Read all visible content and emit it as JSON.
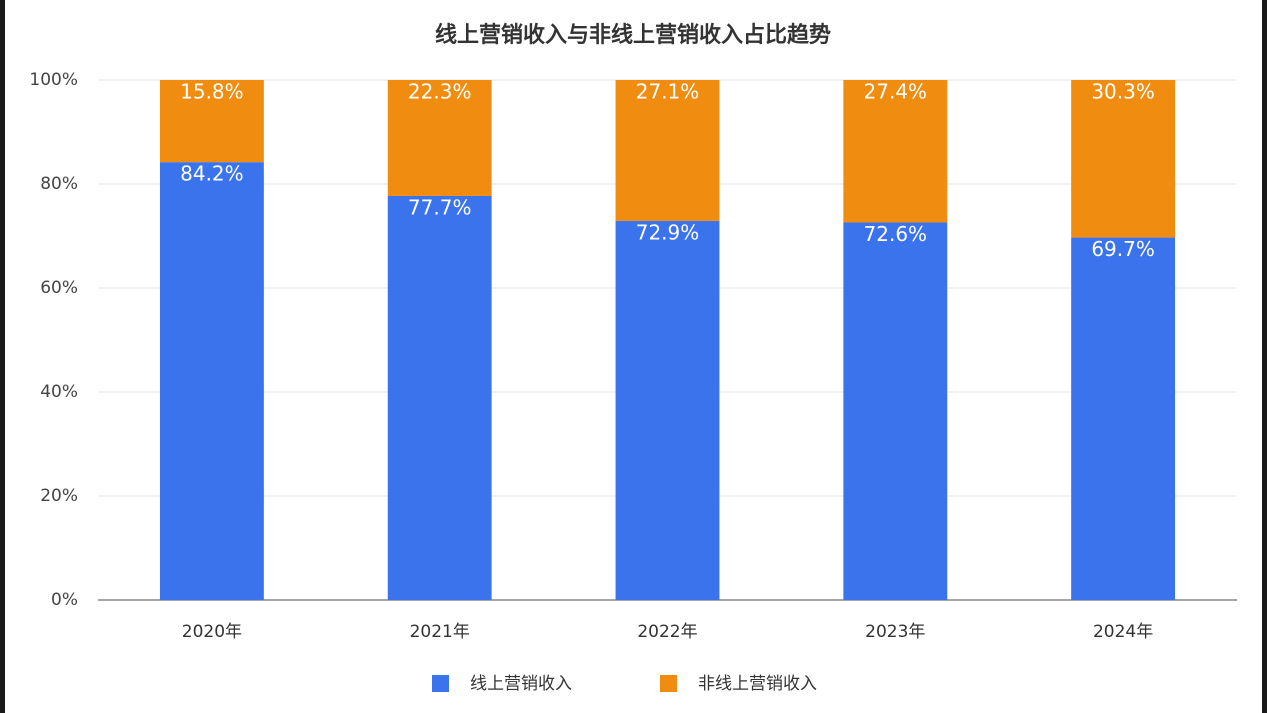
{
  "chart_data": {
    "type": "stacked_bar",
    "title": "线上营销收入与非线上营销收入占比趋势",
    "categories": [
      "2020年",
      "2021年",
      "2022年",
      "2023年",
      "2024年"
    ],
    "series": [
      {
        "name": "线上营销收入",
        "color": "#3b73ec",
        "values": [
          84.2,
          77.7,
          72.9,
          72.6,
          69.7
        ],
        "value_labels": [
          "84.2%",
          "77.7%",
          "72.9%",
          "72.6%",
          "69.7%"
        ]
      },
      {
        "name": "非线上营销收入",
        "color": "#f08c10",
        "values": [
          15.8,
          22.3,
          27.1,
          27.4,
          30.3
        ],
        "value_labels": [
          "15.8%",
          "22.3%",
          "27.1%",
          "27.4%",
          "30.3%"
        ]
      }
    ],
    "ylim": [
      0,
      100
    ],
    "yticks": [
      {
        "value": 0,
        "label": "0%"
      },
      {
        "value": 20,
        "label": "20%"
      },
      {
        "value": 40,
        "label": "40%"
      },
      {
        "value": 60,
        "label": "60%"
      },
      {
        "value": 80,
        "label": "80%"
      },
      {
        "value": 100,
        "label": "100%"
      }
    ],
    "grid": true,
    "legend": "bottom"
  }
}
